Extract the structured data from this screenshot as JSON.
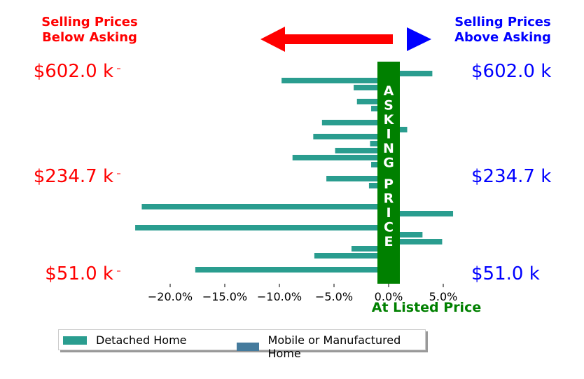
{
  "chart_data": {
    "type": "bar",
    "orientation": "horizontal",
    "header_left": [
      "Selling Prices",
      "Below Asking"
    ],
    "header_right": [
      "Selling Prices",
      "Above Asking"
    ],
    "center_label": "ASKING PRICE",
    "xlabel": "At Listed Price",
    "x_ticks": [
      "−20.0%",
      "−15.0%",
      "−10.0%",
      "−5.0%",
      "0.0%",
      "5.0%"
    ],
    "x_tick_values": [
      -20,
      -15,
      -10,
      -5,
      0,
      5
    ],
    "xlim": [
      -24.5,
      7
    ],
    "y_labels_left": [
      "$602.0 k",
      "$234.7 k",
      "$51.0 k"
    ],
    "y_labels_right": [
      "$602.0 k",
      "$234.7 k",
      "$51.0 k"
    ],
    "series": [
      {
        "name": "Detached Home",
        "color": "#2a9d8f",
        "values": [
          4.0,
          -9.8,
          -3.2,
          1.0,
          -2.9,
          -1.6,
          1.0,
          -6.1,
          1.7,
          -6.9,
          -1.7,
          -4.9,
          -8.8,
          -1.6,
          1.0,
          -5.7,
          -1.8,
          1.0,
          1.0,
          -22.6,
          5.9,
          1.0,
          -23.2,
          3.1,
          4.9,
          -3.4,
          -6.8,
          1.0,
          -17.7
        ]
      },
      {
        "name": "Mobile or Manufactured Home",
        "color": "#457b9d",
        "values": []
      }
    ],
    "colors": {
      "left_text": "#ff0000",
      "right_text": "#0000ff",
      "center": "#008000",
      "arrow_left": "#ff0000",
      "arrow_right": "#0000ff"
    }
  }
}
